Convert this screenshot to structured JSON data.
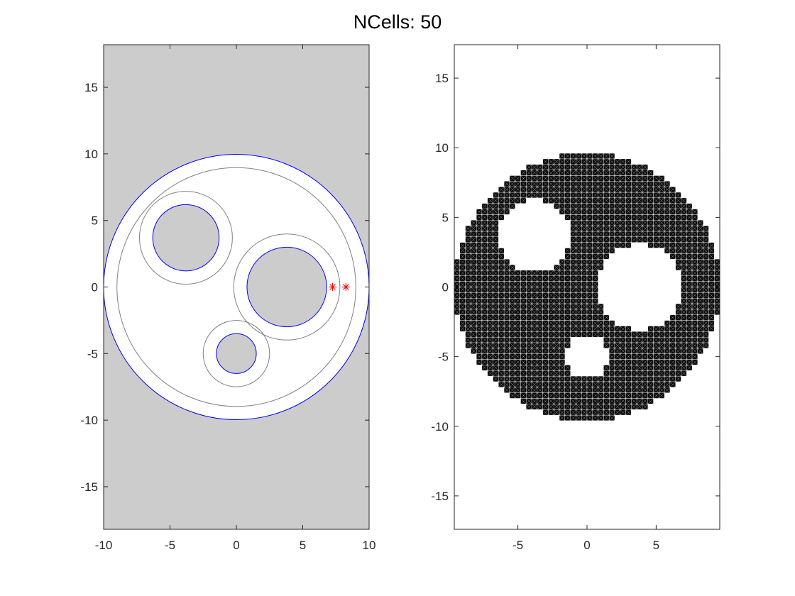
{
  "figure": {
    "title": "NCells: 50",
    "background": "#ffffff"
  },
  "chart_data": [
    {
      "type": "scatter",
      "title": "",
      "xlabel": "",
      "ylabel": "",
      "xlim": [
        -10,
        10
      ],
      "ylim": [
        -18.2,
        18.2
      ],
      "xticks": [
        -10,
        -5,
        0,
        5,
        10
      ],
      "yticks": [
        -15,
        -10,
        -5,
        0,
        5,
        10,
        15
      ],
      "axis_background": "#cccccc",
      "grid": false,
      "circles": [
        {
          "name": "outer-boundary",
          "cx": 0,
          "cy": 0,
          "r": 10,
          "stroke": "#0000ff",
          "fill": "#ffffff"
        },
        {
          "name": "outer-offset",
          "cx": 0,
          "cy": 0,
          "r": 9,
          "stroke": "#808080",
          "fill": "none"
        },
        {
          "name": "hole-1-offset",
          "cx": -3.8,
          "cy": 3.7,
          "r": 3.5,
          "stroke": "#808080",
          "fill": "none"
        },
        {
          "name": "hole-1",
          "cx": -3.8,
          "cy": 3.7,
          "r": 2.5,
          "stroke": "#0000ff",
          "fill": "#cccccc"
        },
        {
          "name": "hole-2-offset",
          "cx": 3.8,
          "cy": 0,
          "r": 4.0,
          "stroke": "#808080",
          "fill": "none"
        },
        {
          "name": "hole-2",
          "cx": 3.8,
          "cy": 0,
          "r": 3.0,
          "stroke": "#0000ff",
          "fill": "#cccccc"
        },
        {
          "name": "hole-3-offset",
          "cx": 0,
          "cy": -5,
          "r": 2.5,
          "stroke": "#808080",
          "fill": "none"
        },
        {
          "name": "hole-3",
          "cx": 0,
          "cy": -5,
          "r": 1.5,
          "stroke": "#0000ff",
          "fill": "#cccccc"
        }
      ],
      "markers": {
        "symbol": "asterisk",
        "color": "#ff0000",
        "points": [
          [
            7.25,
            0
          ],
          [
            8.25,
            0
          ]
        ]
      }
    },
    {
      "type": "heatmap",
      "title": "",
      "xlabel": "",
      "ylabel": "",
      "xlim": [
        -9.6,
        9.6
      ],
      "ylim": [
        -17.4,
        17.4
      ],
      "xticks": [
        -5,
        0,
        5
      ],
      "yticks": [
        -15,
        -10,
        -5,
        0,
        5,
        10,
        15
      ],
      "grid": false,
      "mesh": {
        "cell_size": 0.4,
        "fill": "#000000",
        "line_color": "#ffffff",
        "domain": {
          "cx": 0,
          "cy": 0,
          "r": 9.6
        },
        "holes": [
          {
            "cx": -3.8,
            "cy": 3.7,
            "r": 2.6
          },
          {
            "cx": 3.8,
            "cy": 0,
            "r": 3.1
          },
          {
            "cx": 0,
            "cy": -5,
            "r": 1.6
          }
        ]
      }
    }
  ]
}
